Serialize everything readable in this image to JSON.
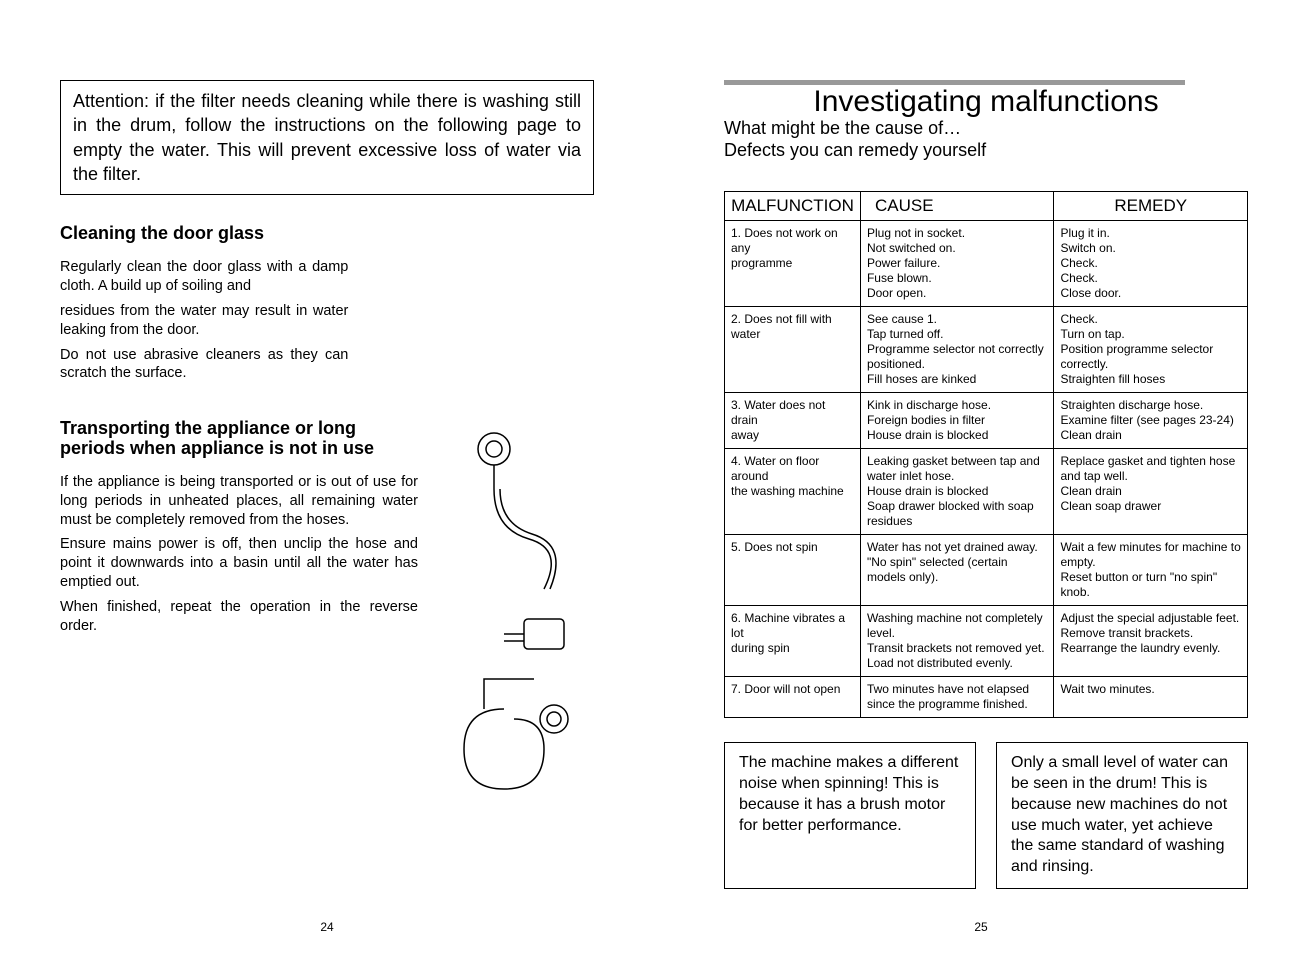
{
  "left": {
    "attention": "Attention: if the filter needs cleaning while there is washing still in the drum, follow the instructions on the following page to empty the water. This will prevent excessive loss of water via the filter.",
    "cleaning_heading": "Cleaning the door glass",
    "cleaning_p1": "Regularly clean the door glass with a damp cloth. A build up of soiling and",
    "cleaning_p2": "residues from the water may result in water leaking from the door.",
    "cleaning_p3": "Do not use abrasive cleaners as they can scratch the surface.",
    "transport_heading": "Transporting the appliance or long periods when appliance is not in use",
    "transport_p1": "If the appliance is being transported or is out of use for long periods in unheated places, all remaining water must be completely removed from the hoses.",
    "transport_p2": "Ensure mains power is off, then unclip the hose and point it downwards into a basin until all the water has emptied out.",
    "transport_p3": "When finished, repeat the operation in the reverse order.",
    "page_num": "24"
  },
  "right": {
    "title": "Investigating malfunctions",
    "sub1": "What might be the cause of…",
    "sub2": "Defects you can remedy yourself",
    "headers": {
      "c1": "MALFUNCTION",
      "c2": "CAUSE",
      "c3": "REMEDY"
    },
    "rows": [
      {
        "m": "1. Does not work on any\nprogramme",
        "c": "Plug not in socket.\nNot switched on.\nPower failure.\nFuse blown.\nDoor open.",
        "r": "Plug it in.\nSwitch on.\nCheck.\nCheck.\nClose door."
      },
      {
        "m": "2. Does not fill with water",
        "c": "See cause 1.\nTap turned off.\nProgramme selector not correctly positioned.\nFill hoses are kinked",
        "r": "Check.\nTurn on tap.\nPosition programme selector correctly.\nStraighten fill hoses"
      },
      {
        "m": "3. Water does not drain\naway",
        "c": "Kink in discharge hose.\nForeign bodies in filter\nHouse drain is blocked",
        "r": "Straighten discharge hose.\nExamine filter (see pages 23-24)\nClean drain"
      },
      {
        "m": "4. Water on floor around\nthe washing machine",
        "c": "Leaking gasket between tap and water inlet hose.\nHouse drain is blocked\nSoap drawer blocked with soap residues",
        "r": "Replace gasket and tighten hose and tap well.\nClean drain\nClean soap drawer"
      },
      {
        "m": "5. Does not spin",
        "c": "Water has not yet drained away.\n\"No spin\" selected (certain models only).",
        "r": "Wait a few minutes for machine to empty.\nReset button or turn \"no spin\" knob."
      },
      {
        "m": "6. Machine vibrates a lot\nduring spin",
        "c": "Washing machine not completely level.\nTransit brackets not removed yet.\nLoad not distributed evenly.",
        "r": "Adjust the special adjustable feet.\nRemove transit brackets.\nRearrange the laundry evenly."
      },
      {
        "m": "7. Door will not open",
        "c": "Two minutes have not elapsed since the programme finished.",
        "r": "Wait two minutes."
      }
    ],
    "box1": "The machine makes a different noise when spinning! This is because it has a brush motor for better performance.",
    "box2": "Only a small level of water can be seen in the drum! This is because new machines do not use much water, yet achieve the same standard of washing and rinsing.",
    "page_num": "25"
  }
}
